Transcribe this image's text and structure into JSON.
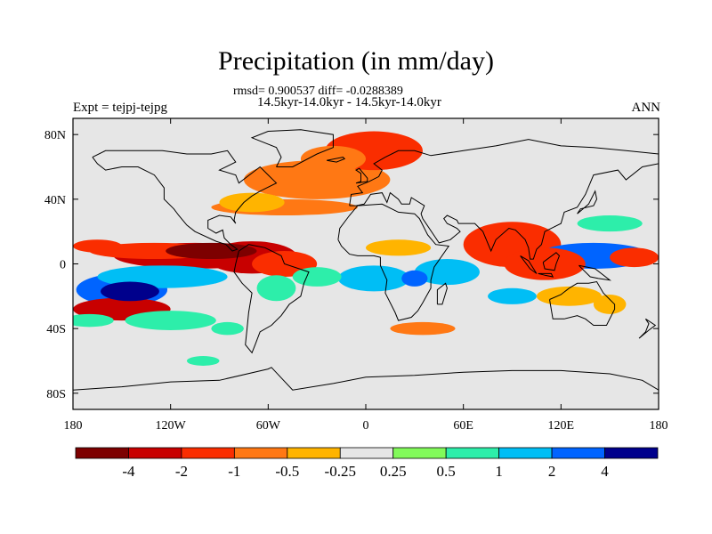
{
  "chart_data": {
    "type": "heatmap",
    "title": "Precipitation (in mm/day)",
    "stats_line": "rmsd= 0.900537 diff= -0.0288389",
    "subtitle": "14.5kyr-14.0kyr - 14.5kyr-14.0kyr",
    "left_string": "Expt = tejpj-tejpg",
    "right_string": "ANN",
    "x_ticks": [
      "180",
      "120W",
      "60W",
      "0",
      "60E",
      "120E",
      "180"
    ],
    "x_tick_values": [
      -180,
      -120,
      -60,
      0,
      60,
      120,
      180
    ],
    "y_ticks": [
      "80N",
      "40N",
      "0",
      "40S",
      "80S"
    ],
    "y_tick_values": [
      80,
      40,
      0,
      -40,
      -80
    ],
    "xlim": [
      -180,
      180
    ],
    "ylim": [
      -90,
      90
    ],
    "colorbar": {
      "colors": [
        "#7d0000",
        "#c80000",
        "#fa2d00",
        "#ff7814",
        "#ffb400",
        "#e6e6e6",
        "#82fa5a",
        "#2deeaa",
        "#00bef5",
        "#0064ff",
        "#00008c"
      ],
      "labels": [
        "-4",
        "-2",
        "-1",
        "-0.5",
        "-0.25",
        "0.25",
        "0.5",
        "1",
        "2",
        "4"
      ]
    },
    "anomaly_regions": [
      {
        "lon": -105,
        "lat": 5,
        "rx": 50,
        "ry": 8,
        "value": -3
      },
      {
        "lon": -95,
        "lat": 8,
        "rx": 28,
        "ry": 5,
        "value": -4.5
      },
      {
        "lon": -70,
        "lat": 4,
        "rx": 28,
        "ry": 10,
        "value": -3
      },
      {
        "lon": -50,
        "lat": 0,
        "rx": 20,
        "ry": 8,
        "value": -1.5
      },
      {
        "lon": -130,
        "lat": 8,
        "rx": 40,
        "ry": 5,
        "value": -2
      },
      {
        "lon": -165,
        "lat": 11,
        "rx": 15,
        "ry": 4,
        "value": -1.5
      },
      {
        "lon": -150,
        "lat": -16,
        "rx": 28,
        "ry": 10,
        "value": 2
      },
      {
        "lon": -145,
        "lat": -17,
        "rx": 18,
        "ry": 6,
        "value": 5
      },
      {
        "lon": -125,
        "lat": -8,
        "rx": 40,
        "ry": 7,
        "value": 1.5
      },
      {
        "lon": -150,
        "lat": -28,
        "rx": 30,
        "ry": 7,
        "value": -3
      },
      {
        "lon": -120,
        "lat": -35,
        "rx": 28,
        "ry": 6,
        "value": 0.7
      },
      {
        "lon": -30,
        "lat": -8,
        "rx": 15,
        "ry": 6,
        "value": 0.7
      },
      {
        "lon": 5,
        "lat": -9,
        "rx": 22,
        "ry": 8,
        "value": 1.5
      },
      {
        "lon": -55,
        "lat": -15,
        "rx": 12,
        "ry": 8,
        "value": 0.7
      },
      {
        "lon": 30,
        "lat": -9,
        "rx": 8,
        "ry": 5,
        "value": 2
      },
      {
        "lon": 50,
        "lat": -5,
        "rx": 20,
        "ry": 8,
        "value": 1.5
      },
      {
        "lon": 20,
        "lat": 10,
        "rx": 20,
        "ry": 5,
        "value": -0.3
      },
      {
        "lon": -30,
        "lat": 52,
        "rx": 45,
        "ry": 12,
        "value": -1
      },
      {
        "lon": 5,
        "lat": 70,
        "rx": 30,
        "ry": 12,
        "value": -2
      },
      {
        "lon": -20,
        "lat": 65,
        "rx": 20,
        "ry": 8,
        "value": -1
      },
      {
        "lon": -70,
        "lat": 38,
        "rx": 20,
        "ry": 6,
        "value": -0.5
      },
      {
        "lon": -50,
        "lat": 35,
        "rx": 45,
        "ry": 5,
        "value": -0.7
      },
      {
        "lon": 90,
        "lat": 12,
        "rx": 30,
        "ry": 14,
        "value": -2
      },
      {
        "lon": 110,
        "lat": 0,
        "rx": 25,
        "ry": 10,
        "value": -1.5
      },
      {
        "lon": 140,
        "lat": 5,
        "rx": 35,
        "ry": 8,
        "value": 2
      },
      {
        "lon": 165,
        "lat": 4,
        "rx": 15,
        "ry": 6,
        "value": -2
      },
      {
        "lon": 150,
        "lat": 25,
        "rx": 20,
        "ry": 5,
        "value": 0.5
      },
      {
        "lon": 125,
        "lat": -20,
        "rx": 20,
        "ry": 6,
        "value": -0.5
      },
      {
        "lon": 150,
        "lat": -25,
        "rx": 10,
        "ry": 6,
        "value": -0.3
      },
      {
        "lon": 90,
        "lat": -20,
        "rx": 15,
        "ry": 5,
        "value": 1.5
      },
      {
        "lon": 35,
        "lat": -40,
        "rx": 20,
        "ry": 4,
        "value": -0.7
      },
      {
        "lon": -85,
        "lat": -40,
        "rx": 10,
        "ry": 4,
        "value": 0.5
      },
      {
        "lon": -170,
        "lat": -35,
        "rx": 15,
        "ry": 4,
        "value": 0.5
      },
      {
        "lon": -100,
        "lat": -60,
        "rx": 10,
        "ry": 3,
        "value": 0.5
      }
    ]
  }
}
